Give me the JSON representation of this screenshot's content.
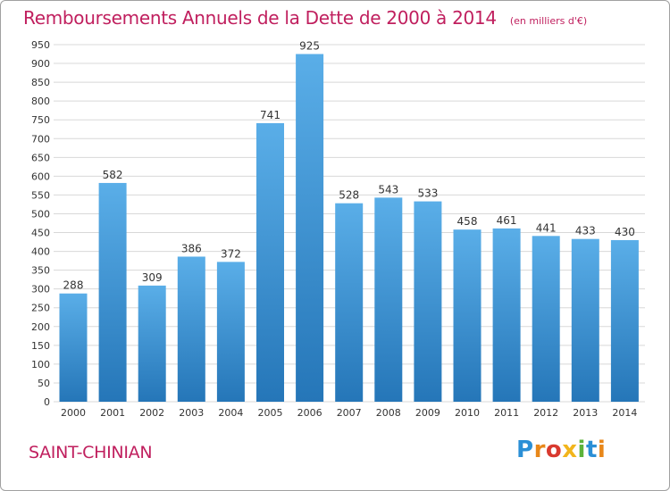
{
  "header": {
    "title": "Remboursements Annuels de la Dette de 2000 à 2014",
    "unit": "(en milliers d'€)"
  },
  "footer": {
    "commune": "SAINT-CHINIAN",
    "brand": "Proxiti"
  },
  "colors": {
    "title": "#c01f5e",
    "bar_top": "#5aaee8",
    "bar_bottom": "#2576b8",
    "grid": "#d8d8d8",
    "axis_text": "#333333"
  },
  "chart_data": {
    "type": "bar",
    "categories": [
      "2000",
      "2001",
      "2002",
      "2003",
      "2004",
      "2005",
      "2006",
      "2007",
      "2008",
      "2009",
      "2010",
      "2011",
      "2012",
      "2013",
      "2014"
    ],
    "values": [
      288,
      582,
      309,
      386,
      372,
      741,
      925,
      528,
      543,
      533,
      458,
      461,
      441,
      433,
      430
    ],
    "ylim": [
      0,
      950
    ],
    "ytick_step": 50,
    "grid": true,
    "data_labels": true
  }
}
